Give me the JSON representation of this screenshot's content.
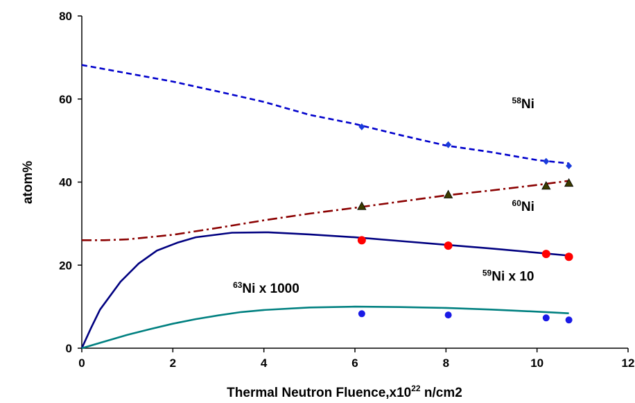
{
  "chart_data": {
    "type": "line",
    "title": "",
    "xlabel": {
      "main": "Thermal Neutron Fluence,x10",
      "sup": "22",
      "tail": " n/cm2"
    },
    "ylabel": "atom%",
    "xlim": [
      0,
      12
    ],
    "ylim": [
      0,
      80
    ],
    "xticks": [
      "0",
      "2",
      "4",
      "6",
      "8",
      "10",
      "12"
    ],
    "yticks": [
      "0",
      "20",
      "40",
      "60",
      "80"
    ],
    "grid": false,
    "series": [
      {
        "name": "58Ni",
        "label_sup": "58",
        "label_main": "Ni",
        "color": "#0000cc",
        "style": "dashed",
        "line": [
          [
            0,
            68.2
          ],
          [
            1,
            66.2
          ],
          [
            2,
            64.2
          ],
          [
            3,
            61.8
          ],
          [
            4,
            59.3
          ],
          [
            5,
            56.2
          ],
          [
            6,
            54.0
          ],
          [
            7,
            51.3
          ],
          [
            8,
            48.8
          ],
          [
            9,
            47.2
          ],
          [
            10,
            45.3
          ],
          [
            10.7,
            44.5
          ]
        ],
        "marker": "diamond",
        "marker_color": "#1a3cdc",
        "points": [
          [
            6.15,
            53.3
          ],
          [
            8.05,
            49.0
          ],
          [
            10.2,
            45.0
          ],
          [
            10.7,
            43.9
          ]
        ]
      },
      {
        "name": "60Ni",
        "label_sup": "60",
        "label_main": "Ni",
        "color": "#8b0000",
        "style": "dashdot",
        "line": [
          [
            0,
            26.0
          ],
          [
            0.5,
            26.0
          ],
          [
            1,
            26.2
          ],
          [
            2,
            27.3
          ],
          [
            3,
            29.0
          ],
          [
            4,
            30.8
          ],
          [
            5,
            32.4
          ],
          [
            6,
            33.8
          ],
          [
            7,
            35.3
          ],
          [
            8,
            36.8
          ],
          [
            9,
            38.0
          ],
          [
            10,
            39.3
          ],
          [
            10.7,
            40.3
          ]
        ],
        "marker": "triangle",
        "marker_color": "#3b3b00",
        "points": [
          [
            6.15,
            34.2
          ],
          [
            8.05,
            37.0
          ],
          [
            10.2,
            39.1
          ],
          [
            10.7,
            39.8
          ]
        ]
      },
      {
        "name": "59Ni x 10",
        "label_sup": "59",
        "label_main": "Ni x 10",
        "color": "#000080",
        "style": "solid",
        "line": [
          [
            0,
            0
          ],
          [
            0.2,
            4.8
          ],
          [
            0.4,
            9.3
          ],
          [
            0.85,
            16.0
          ],
          [
            1.25,
            20.4
          ],
          [
            1.65,
            23.5
          ],
          [
            2.1,
            25.4
          ],
          [
            2.5,
            26.7
          ],
          [
            3.3,
            27.8
          ],
          [
            4.1,
            27.9
          ],
          [
            5,
            27.4
          ],
          [
            6,
            26.7
          ],
          [
            7,
            25.8
          ],
          [
            8,
            24.9
          ],
          [
            9,
            24.0
          ],
          [
            10,
            23.0
          ],
          [
            10.7,
            22.3
          ]
        ],
        "marker": "circle",
        "marker_color": "#ff0000",
        "points": [
          [
            6.15,
            26.0
          ],
          [
            8.05,
            24.7
          ],
          [
            10.2,
            22.7
          ],
          [
            10.7,
            22.0
          ]
        ]
      },
      {
        "name": "63Ni x 1000",
        "label_sup": "63",
        "label_main": "Ni x 1000",
        "color": "#008080",
        "style": "solid",
        "line": [
          [
            0,
            0
          ],
          [
            0.5,
            1.6
          ],
          [
            1,
            3.2
          ],
          [
            1.5,
            4.6
          ],
          [
            2,
            5.9
          ],
          [
            2.5,
            7.0
          ],
          [
            3,
            7.9
          ],
          [
            3.5,
            8.7
          ],
          [
            4,
            9.2
          ],
          [
            5,
            9.8
          ],
          [
            6,
            10.0
          ],
          [
            7,
            9.9
          ],
          [
            8,
            9.7
          ],
          [
            9,
            9.3
          ],
          [
            10,
            8.8
          ],
          [
            10.7,
            8.4
          ]
        ],
        "marker": "circle",
        "marker_color": "#1a1ae6",
        "points": [
          [
            6.15,
            8.3
          ],
          [
            8.05,
            8.0
          ],
          [
            10.2,
            7.3
          ],
          [
            10.7,
            6.8
          ]
        ]
      }
    ]
  }
}
